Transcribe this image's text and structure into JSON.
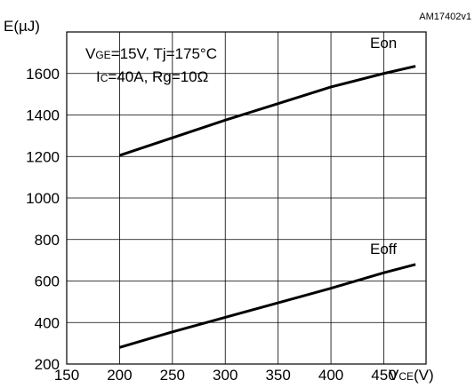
{
  "chart_data": {
    "type": "line",
    "figure_id": "AM17402v1",
    "ylabel": "E(µJ)",
    "xlabel": {
      "prefix": "V",
      "subscript": "CE",
      "suffix": "(V)"
    },
    "xlim": [
      150,
      490
    ],
    "ylim": [
      200,
      1800
    ],
    "xticks": [
      150,
      200,
      250,
      300,
      350,
      400,
      450
    ],
    "yticks": [
      200,
      400,
      600,
      800,
      1000,
      1200,
      1400,
      1600
    ],
    "grid": true,
    "conditions": {
      "line1": {
        "vge_prefix": "V",
        "vge_sub": "GE",
        "vge_rest": "=15V, Tj=175°C"
      },
      "line2": {
        "ic_prefix": "I",
        "ic_sub": "C",
        "ic_rest": "=40A,  Rg=10Ω"
      }
    },
    "series": [
      {
        "name": "Eon",
        "x": [
          200,
          250,
          300,
          350,
          400,
          450,
          480
        ],
        "y": [
          1205,
          1290,
          1375,
          1455,
          1535,
          1600,
          1635
        ]
      },
      {
        "name": "Eoff",
        "x": [
          200,
          250,
          300,
          350,
          400,
          450,
          480
        ],
        "y": [
          280,
          355,
          425,
          495,
          565,
          640,
          680
        ]
      }
    ]
  }
}
